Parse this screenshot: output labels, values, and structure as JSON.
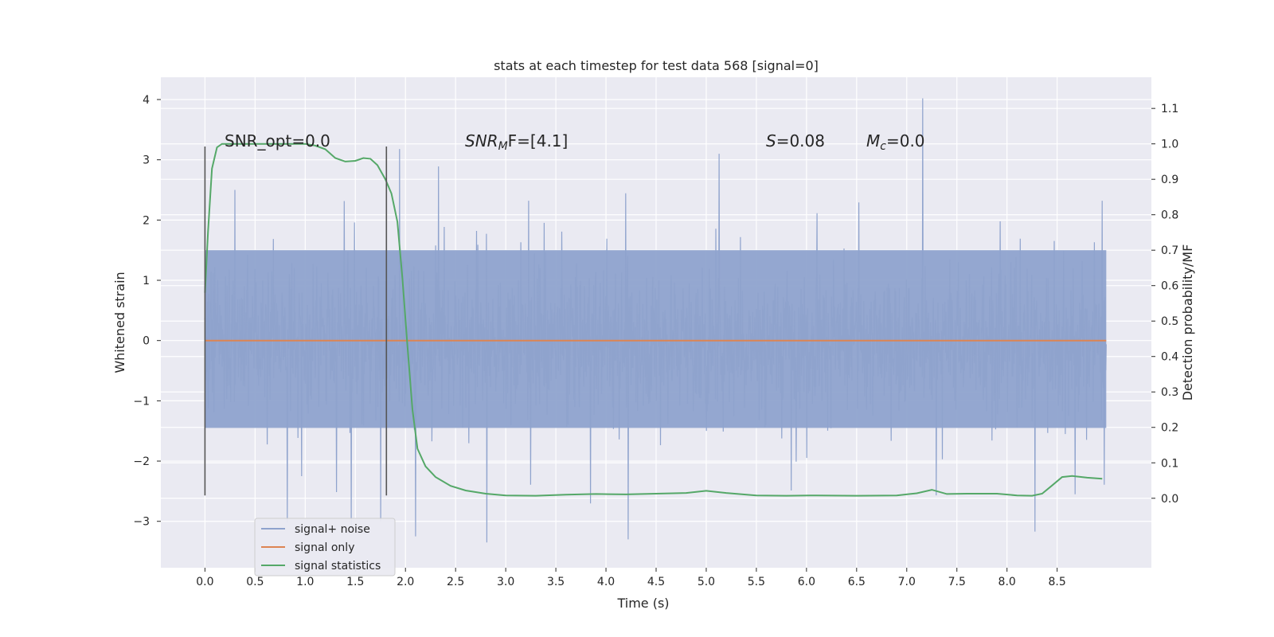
{
  "chart_data": {
    "type": "line",
    "title": "stats at each timestep for test data 568 [signal=0]",
    "xlabel": "Time (s)",
    "ylabel": "Whitened strain",
    "y2label": "Detection probability/MF",
    "xlim": [
      -0.44,
      9.44
    ],
    "ylim": [
      -3.77,
      4.37
    ],
    "y2lim": [
      -0.196,
      1.188
    ],
    "grid": true,
    "legend_placement": "lower-left",
    "x_ticks": [
      "0.0",
      "0.5",
      "1.0",
      "1.5",
      "2.0",
      "2.5",
      "3.0",
      "3.5",
      "4.0",
      "4.5",
      "5.0",
      "5.5",
      "6.0",
      "6.5",
      "7.0",
      "7.5",
      "8.0",
      "8.5"
    ],
    "y_ticks": [
      "4",
      "3",
      "2",
      "1",
      "0",
      "−1",
      "−2",
      "−3"
    ],
    "y2_ticks": [
      "1.1",
      "1.0",
      "0.9",
      "0.8",
      "0.7",
      "0.6",
      "0.5",
      "0.4",
      "0.3",
      "0.2",
      "0.1",
      "0.0"
    ],
    "annotations": {
      "snr_opt": "SNR_opt=0.0",
      "snr_mf_main": "SNR",
      "snr_mf_sub": "M",
      "snr_mf_tail": "F=[4.1]",
      "s_main": "S",
      "s_tail": "=0.08",
      "mc_main": "M",
      "mc_sub": "c",
      "mc_tail": "=0.0"
    },
    "vlines": [
      {
        "x": 0.0,
        "y_from": -2.57,
        "y_to": 3.22
      },
      {
        "x": 1.81,
        "y_from": -2.57,
        "y_to": 3.22
      }
    ],
    "series": [
      {
        "name": "signal+ noise",
        "color": "#8fa3cd",
        "kind": "noise",
        "t_start": 0.0,
        "t_end": 8.99,
        "band": [
          -1.45,
          1.5
        ],
        "samples": 2200,
        "spikes": [
          {
            "x": 7.16,
            "y": 4.02
          },
          {
            "x": 5.13,
            "y": 3.1
          },
          {
            "x": 1.46,
            "y": -3.12
          },
          {
            "x": 1.94,
            "y": 3.18
          },
          {
            "x": 2.81,
            "y": -3.35
          },
          {
            "x": 4.22,
            "y": -3.3
          },
          {
            "x": 0.82,
            "y": -3.02
          },
          {
            "x": 8.28,
            "y": -3.17
          },
          {
            "x": 2.1,
            "y": -3.25
          },
          {
            "x": 8.68,
            "y": -2.55
          },
          {
            "x": 0.3,
            "y": 2.5
          }
        ]
      },
      {
        "name": "signal only",
        "color": "#dd8452",
        "kind": "line",
        "x": [
          0.0,
          8.99
        ],
        "y": [
          0.0,
          0.0
        ]
      },
      {
        "name": "signal statistics",
        "color": "#55a868",
        "kind": "line",
        "axis": "right",
        "x": [
          0.0,
          0.03,
          0.07,
          0.12,
          0.17,
          0.25,
          0.4,
          0.6,
          0.8,
          1.0,
          1.1,
          1.2,
          1.3,
          1.4,
          1.5,
          1.58,
          1.65,
          1.72,
          1.8,
          1.86,
          1.92,
          1.97,
          2.02,
          2.07,
          2.12,
          2.2,
          2.3,
          2.45,
          2.6,
          2.8,
          3.0,
          3.3,
          3.6,
          3.9,
          4.2,
          4.5,
          4.8,
          5.0,
          5.2,
          5.5,
          5.8,
          6.1,
          6.5,
          6.9,
          7.1,
          7.25,
          7.4,
          7.6,
          7.9,
          8.1,
          8.25,
          8.35,
          8.45,
          8.55,
          8.65,
          8.8,
          8.95
        ],
        "y": [
          0.58,
          0.75,
          0.93,
          0.99,
          1.0,
          1.0,
          1.0,
          1.0,
          1.0,
          1.0,
          0.995,
          0.985,
          0.96,
          0.95,
          0.952,
          0.96,
          0.958,
          0.94,
          0.9,
          0.86,
          0.78,
          0.62,
          0.43,
          0.25,
          0.14,
          0.09,
          0.06,
          0.035,
          0.022,
          0.013,
          0.008,
          0.007,
          0.01,
          0.012,
          0.011,
          0.013,
          0.015,
          0.021,
          0.015,
          0.008,
          0.007,
          0.008,
          0.007,
          0.008,
          0.014,
          0.024,
          0.012,
          0.013,
          0.013,
          0.008,
          0.007,
          0.013,
          0.036,
          0.06,
          0.063,
          0.058,
          0.055
        ]
      }
    ]
  }
}
